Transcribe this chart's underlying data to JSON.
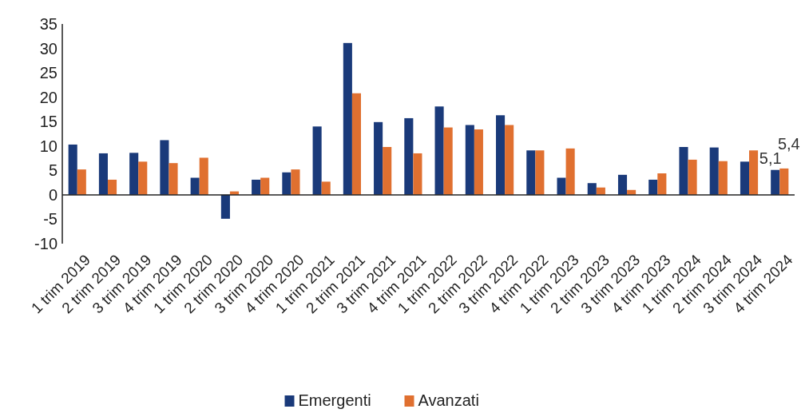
{
  "chart_data": {
    "type": "bar",
    "categories": [
      "1 trim 2019",
      "2 trim 2019",
      "3 trim 2019",
      "4 trim 2019",
      "1 trim 2020",
      "2 trim 2020",
      "3 trim 2020",
      "4 trim 2020",
      "1 trim 2021",
      "2 trim 2021",
      "3 trim 2021",
      "4 trim 2021",
      "1 trim 2022",
      "2 trim 2022",
      "3 trim 2022",
      "4 trim 2022",
      "1 trim 2023",
      "2 trim 2023",
      "3 trim 2023",
      "4 trim 2023",
      "1 trim 2024",
      "2 trim 2024",
      "3 trim 2024",
      "4 trim 2024"
    ],
    "series": [
      {
        "name": "Emergenti",
        "color": "#1a3a7a",
        "values": [
          10.3,
          8.5,
          8.6,
          11.2,
          3.5,
          -4.9,
          3.1,
          4.6,
          14.0,
          31.1,
          14.9,
          15.7,
          18.1,
          14.3,
          16.3,
          9.1,
          3.5,
          2.4,
          4.1,
          3.1,
          9.8,
          9.7,
          6.8,
          5.1
        ],
        "value_labels": [
          null,
          null,
          null,
          null,
          null,
          null,
          null,
          null,
          null,
          null,
          null,
          null,
          null,
          null,
          null,
          null,
          null,
          null,
          null,
          null,
          null,
          null,
          null,
          "5,1"
        ]
      },
      {
        "name": "Avanzati",
        "color": "#e07030",
        "values": [
          5.2,
          3.1,
          6.8,
          6.5,
          7.6,
          0.7,
          3.5,
          5.2,
          2.7,
          20.8,
          9.8,
          8.5,
          13.8,
          13.4,
          14.3,
          9.1,
          9.5,
          1.5,
          1.0,
          4.4,
          7.2,
          6.9,
          9.1,
          5.4
        ],
        "value_labels": [
          null,
          null,
          null,
          null,
          null,
          null,
          null,
          null,
          null,
          null,
          null,
          null,
          null,
          null,
          null,
          null,
          null,
          null,
          null,
          null,
          null,
          null,
          null,
          "5,4"
        ]
      }
    ],
    "ylim": [
      -10,
      35
    ],
    "yticks": [
      -10,
      -5,
      0,
      5,
      10,
      15,
      20,
      25,
      30,
      35
    ],
    "legend": "bottom"
  }
}
